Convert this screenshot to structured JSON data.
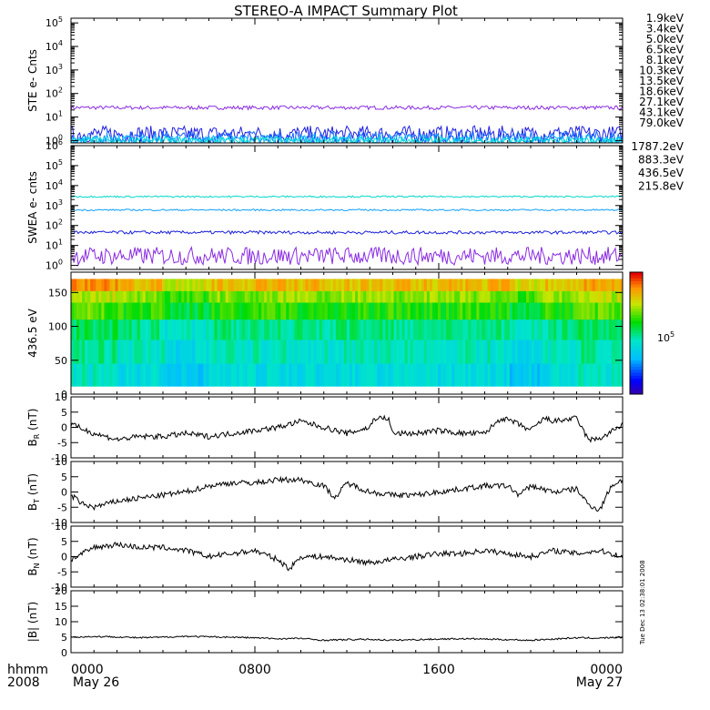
{
  "title": "STEREO-A IMPACT Summary Plot",
  "footer": {
    "unit_label": "hhmm",
    "year_label": "2008",
    "start_date": "May 26",
    "end_date": "May 27"
  },
  "side_stamp": "Tue Dec 13 02:38:01 2008",
  "x_axis": {
    "range": [
      0,
      24
    ],
    "ticks": [
      {
        "x": 0,
        "label": "0000"
      },
      {
        "x": 8,
        "label": "0800"
      },
      {
        "x": 16,
        "label": "1600"
      },
      {
        "x": 24,
        "label": "0000"
      }
    ]
  },
  "chart_data": [
    {
      "type": "line",
      "ylabel": "STE e- Cnts",
      "yscale": "log",
      "ylim_log10": [
        -0.1,
        5.2
      ],
      "yticks": [
        {
          "exp": 0,
          "label": "10",
          "sup": "0"
        },
        {
          "exp": 1,
          "label": "10",
          "sup": "1"
        },
        {
          "exp": 2,
          "label": "10",
          "sup": "2"
        },
        {
          "exp": 3,
          "label": "10",
          "sup": "3"
        },
        {
          "exp": 4,
          "label": "10",
          "sup": "4"
        },
        {
          "exp": 5,
          "label": "10",
          "sup": "5"
        }
      ],
      "legend": [
        "1.9keV",
        "3.4keV",
        "5.0keV",
        "6.5keV",
        "8.1keV",
        "10.3keV",
        "13.5keV",
        "18.6keV",
        "27.1keV",
        "43.1keV",
        "79.0keV"
      ],
      "legend_colors": [
        "#8a2be2",
        "#5a1fd0",
        "#1540e0",
        "#10a8e8",
        "#00e0c8",
        "#20c020",
        "#50d000",
        "#c8d000",
        "#ffb000",
        "#ff7a00",
        "#e02010"
      ],
      "series_levels": [
        {
          "color": "#8a2be2",
          "base": 25,
          "noise": 0.08
        },
        {
          "color": "#2020e0",
          "base": 1.9,
          "noise": 0.35
        },
        {
          "color": "#1060ff",
          "base": 1.3,
          "noise": 0.3
        },
        {
          "color": "#10b8ff",
          "base": 1.1,
          "noise": 0.2
        },
        {
          "color": "#00e0d0",
          "base": 1.0,
          "noise": 0.15
        }
      ]
    },
    {
      "type": "line",
      "ylabel": "SWEA e- cnts",
      "yscale": "log",
      "ylim_log10": [
        -0.2,
        6.0
      ],
      "yticks": [
        {
          "exp": 0,
          "label": "10",
          "sup": "0"
        },
        {
          "exp": 1,
          "label": "10",
          "sup": "1"
        },
        {
          "exp": 2,
          "label": "10",
          "sup": "2"
        },
        {
          "exp": 3,
          "label": "10",
          "sup": "3"
        },
        {
          "exp": 4,
          "label": "10",
          "sup": "4"
        },
        {
          "exp": 5,
          "label": "10",
          "sup": "5"
        },
        {
          "exp": 6,
          "label": "10",
          "sup": "6"
        }
      ],
      "legend": [
        "1787.2eV",
        "883.3eV",
        "436.5eV",
        "215.8eV"
      ],
      "legend_colors": [
        "#8a2be2",
        "#1a20d8",
        "#10a0ff",
        "#00d8c8"
      ],
      "series_levels": [
        {
          "color": "#8a2be2",
          "base": 3,
          "noise": 0.45
        },
        {
          "color": "#1a20d8",
          "base": 45,
          "noise": 0.08
        },
        {
          "color": "#10a0ff",
          "base": 600,
          "noise": 0.04
        },
        {
          "color": "#00d8c8",
          "base": 2800,
          "noise": 0.04
        }
      ]
    },
    {
      "type": "heatmap",
      "ylabel": "436.5 eV",
      "ylim": [
        0,
        180
      ],
      "yticks": [
        {
          "v": 0,
          "label": "0"
        },
        {
          "v": 50,
          "label": "50"
        },
        {
          "v": 100,
          "label": "100"
        },
        {
          "v": 150,
          "label": "150"
        }
      ],
      "colorbar_label": "10",
      "colorbar_sup": "5"
    },
    {
      "type": "line",
      "ylabel": "B",
      "ylabel_sub": "R",
      "ylabel_unit": " (nT)",
      "ylim": [
        -10,
        10
      ],
      "yticks": [
        {
          "v": -10,
          "label": "-10"
        },
        {
          "v": -5,
          "label": "-5"
        },
        {
          "v": 0,
          "label": "0"
        },
        {
          "v": 5,
          "label": "5"
        },
        {
          "v": 10,
          "label": "10"
        }
      ],
      "x": [
        0,
        1,
        2,
        3,
        4,
        5,
        6,
        7,
        8,
        9,
        10,
        11,
        12,
        13,
        13.2,
        13.8,
        14,
        15,
        16,
        17,
        18,
        18.7,
        19.2,
        20,
        20.6,
        21,
        22,
        22.5,
        22.8,
        23.2,
        23.6,
        24
      ],
      "values": [
        1,
        -2,
        -4,
        -3,
        -3,
        -2,
        -3,
        -2,
        -1,
        0,
        2,
        0,
        -2,
        0,
        3,
        3,
        -2,
        -2,
        -1,
        -2,
        -2,
        3,
        2,
        -1,
        3,
        2,
        3,
        -4,
        -4,
        -3,
        -1,
        1
      ]
    },
    {
      "type": "line",
      "ylabel": "B",
      "ylabel_sub": "T",
      "ylabel_unit": " (nT)",
      "ylim": [
        -10,
        10
      ],
      "yticks": [
        {
          "v": -10,
          "label": "-10"
        },
        {
          "v": -5,
          "label": "-5"
        },
        {
          "v": 0,
          "label": "0"
        },
        {
          "v": 5,
          "label": "5"
        },
        {
          "v": 10,
          "label": "10"
        }
      ],
      "x": [
        0,
        0.5,
        1,
        2,
        3,
        4,
        5,
        6,
        7,
        8,
        9,
        10,
        11,
        11.5,
        12,
        13,
        14,
        15,
        16,
        17,
        18,
        19,
        19.5,
        20,
        21,
        22,
        22.5,
        23,
        23.5,
        24
      ],
      "values": [
        -1,
        -4,
        -5,
        -3,
        -2,
        -1,
        0,
        2,
        3,
        3,
        4,
        4,
        2,
        -2,
        3,
        0,
        -1,
        -1,
        0,
        1,
        2,
        2,
        -1,
        2,
        0,
        1,
        -4,
        -6,
        2,
        4
      ]
    },
    {
      "type": "line",
      "ylabel": "B",
      "ylabel_sub": "N",
      "ylabel_unit": " (nT)",
      "ylim": [
        -10,
        10
      ],
      "yticks": [
        {
          "v": -10,
          "label": "-10"
        },
        {
          "v": -5,
          "label": "-5"
        },
        {
          "v": 0,
          "label": "0"
        },
        {
          "v": 5,
          "label": "5"
        },
        {
          "v": 10,
          "label": "10"
        }
      ],
      "x": [
        0,
        1,
        2,
        3,
        4,
        5,
        6,
        7,
        8,
        9,
        9.5,
        10,
        11,
        12,
        13,
        14,
        15,
        16,
        17,
        18,
        19,
        20,
        21,
        22,
        23,
        24
      ],
      "values": [
        -1,
        3,
        4,
        3,
        3,
        2,
        0,
        1,
        2,
        -1,
        -4,
        0,
        0,
        -1,
        -2,
        -1,
        0,
        1,
        1,
        2,
        1,
        0,
        2,
        1,
        2,
        0
      ]
    },
    {
      "type": "line",
      "ylabel": "|B| (nT)",
      "ylim": [
        0,
        20
      ],
      "yticks": [
        {
          "v": 0,
          "label": "0"
        },
        {
          "v": 5,
          "label": "5"
        },
        {
          "v": 10,
          "label": "10"
        },
        {
          "v": 15,
          "label": "15"
        },
        {
          "v": 20,
          "label": "20"
        }
      ],
      "x": [
        0,
        1,
        2,
        3,
        4,
        5,
        6,
        7,
        8,
        9,
        10,
        11,
        12,
        13,
        14,
        15,
        16,
        17,
        18,
        19,
        20,
        21,
        22,
        23,
        24
      ],
      "values": [
        5,
        5.2,
        5.1,
        4.8,
        5,
        5.3,
        5.1,
        5,
        4.8,
        4.5,
        4.6,
        4,
        4.2,
        4.3,
        4,
        4.2,
        4.4,
        4.5,
        4.4,
        4.2,
        4,
        4.4,
        4.8,
        4.7,
        5
      ]
    }
  ]
}
